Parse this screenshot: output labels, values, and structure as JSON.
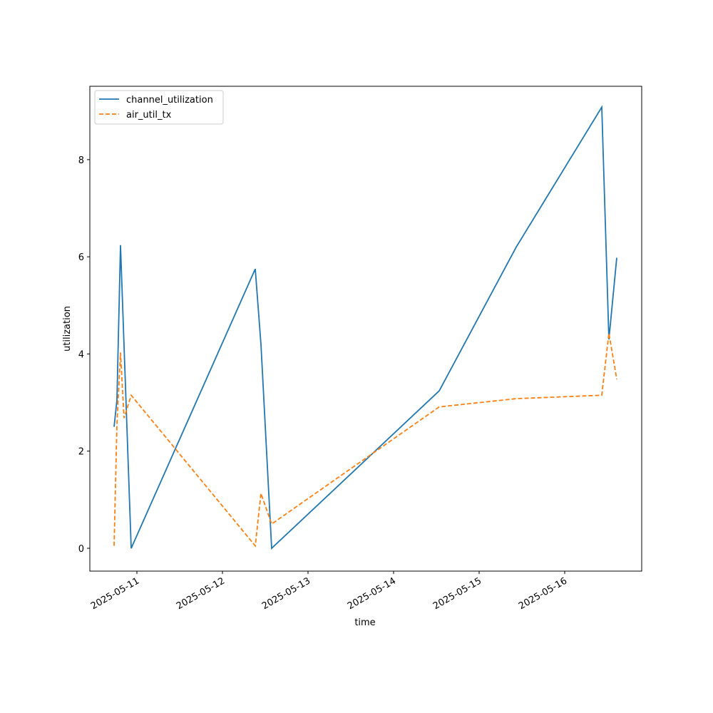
{
  "chart_data": {
    "type": "line",
    "xlabel": "time",
    "ylabel": "utilization",
    "x": [
      "2025-05-10T17:36",
      "2025-05-10T18:24",
      "2025-05-10T19:24",
      "2025-05-10T20:24",
      "2025-05-10T22:24",
      "2025-05-12T09:12",
      "2025-05-12T10:48",
      "2025-05-12T13:48",
      "2025-05-14T12:48",
      "2025-05-15T10:24",
      "2025-05-16T10:24",
      "2025-05-16T12:24",
      "2025-05-16T14:36"
    ],
    "series": [
      {
        "name": "channel_utilization",
        "color": "#1f77b4",
        "dash": false,
        "values": [
          2.5,
          3.05,
          6.24,
          4.16,
          0,
          5.75,
          4.2,
          0,
          3.24,
          6.2,
          9.08,
          4.3,
          5.98
        ]
      },
      {
        "name": "air_util_tx",
        "color": "#ff7f0e",
        "dash": true,
        "values": [
          0.05,
          2.55,
          4.03,
          2.68,
          3.15,
          0.05,
          1.13,
          0.5,
          2.91,
          3.08,
          3.15,
          4.43,
          3.48
        ]
      }
    ],
    "xlim": [
      "2025-05-10T10:48",
      "2025-05-16T21:36"
    ],
    "xticks": [
      "2025-05-11",
      "2025-05-12",
      "2025-05-13",
      "2025-05-14",
      "2025-05-15",
      "2025-05-16"
    ],
    "ylim": [
      -0.47,
      9.51
    ],
    "yticks": [
      0,
      2,
      4,
      6,
      8
    ],
    "legend": "upper left"
  }
}
